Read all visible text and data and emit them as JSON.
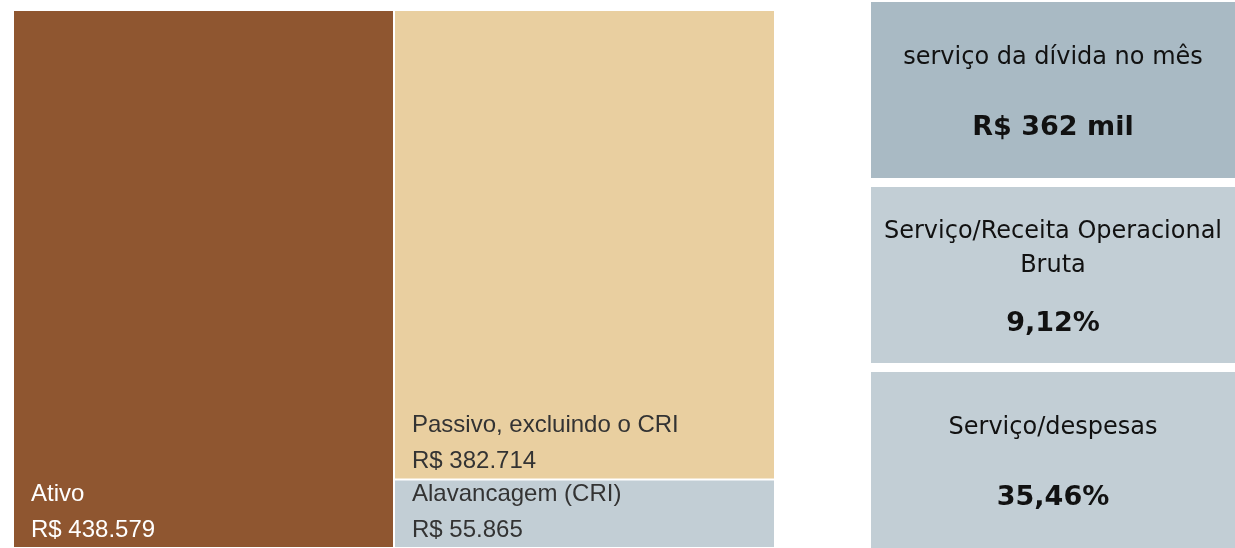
{
  "chart_data": [
    {
      "type": "other",
      "categories": [
        "Ativo",
        "Passivo, excluindo o CRI",
        "Alavancagem (CRI)"
      ],
      "values": [
        438579,
        382714,
        55865
      ],
      "value_labels": [
        "R$ 438.579",
        "R$ 382.714",
        "R$ 55.865"
      ],
      "colors": [
        "#8f5630",
        "#e9cfa0",
        "#c2ced5"
      ]
    },
    {
      "type": "other",
      "annotations": [
        "serviço da dívida no mês",
        "R$ 362 mil",
        "Serviço/Receita Operacional Bruta",
        "9,12%",
        "Serviço/despesas",
        "35,46%"
      ]
    }
  ]
}
